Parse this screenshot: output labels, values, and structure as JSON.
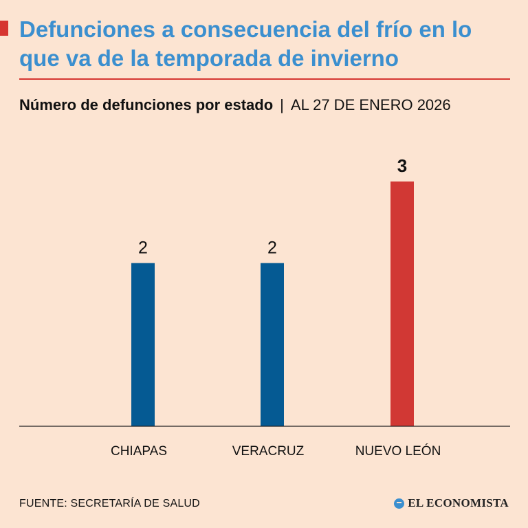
{
  "header": {
    "title": "Defunciones a consecuencia del frío en lo que va de la temporada de invierno",
    "subtitle_main": "Número de defunciones por estado",
    "subtitle_separator": "|",
    "subtitle_date": "AL 27 DE ENERO 2026"
  },
  "chart_data": {
    "type": "bar",
    "title": "Número de defunciones por estado",
    "categories": [
      "CHIAPAS",
      "VERACRUZ",
      "NUEVO LEÓN"
    ],
    "values": [
      2,
      2,
      3
    ],
    "colors": [
      "#055a93",
      "#055a93",
      "#d13834"
    ],
    "value_label_bold": [
      false,
      false,
      true
    ],
    "xlabel": "",
    "ylabel": "",
    "ylim": [
      0,
      3
    ]
  },
  "footer": {
    "source": "FUENTE: SECRETARÍA DE SALUD",
    "brand": "EL ECONOMISTA",
    "brand_icon": "el-economista-logo-icon"
  },
  "colors": {
    "background": "#fce4d2",
    "title": "#3b8fcf",
    "accent": "#d63531"
  }
}
